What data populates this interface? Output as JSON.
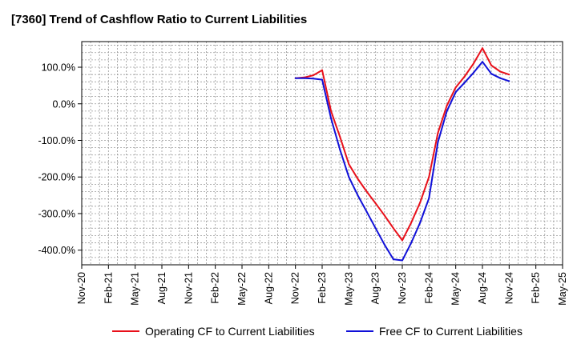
{
  "chart_data": {
    "type": "line",
    "title": "[7360]  Trend of Cashflow Ratio to Current Liabilities",
    "xlabel": "",
    "ylabel": "",
    "x_ticks": [
      "Nov-20",
      "Feb-21",
      "May-21",
      "Aug-21",
      "Nov-21",
      "Feb-22",
      "May-22",
      "Aug-22",
      "Nov-22",
      "Feb-23",
      "May-23",
      "Aug-23",
      "Nov-23",
      "Feb-24",
      "May-24",
      "Aug-24",
      "Nov-24",
      "Feb-25",
      "May-25"
    ],
    "y_ticks": [
      "100.0%",
      "0.0%",
      "-100.0%",
      "-200.0%",
      "-300.0%",
      "-400.0%"
    ],
    "y_tick_values": [
      100,
      0,
      -100,
      -200,
      -300,
      -400
    ],
    "ylim": [
      -440,
      170
    ],
    "grid": true,
    "legend_position": "bottom",
    "series": [
      {
        "name": "Operating CF to Current Liabilities",
        "color": "#e8101a",
        "x": [
          "Nov-22",
          "Dec-22",
          "Jan-23",
          "Feb-23",
          "Mar-23",
          "Apr-23",
          "May-23",
          "Jun-23",
          "Jul-23",
          "Aug-23",
          "Sep-23",
          "Oct-23",
          "Nov-23",
          "Dec-23",
          "Jan-24",
          "Feb-24",
          "Mar-24",
          "Apr-24",
          "May-24",
          "Jun-24",
          "Jul-24",
          "Aug-24",
          "Sep-24",
          "Oct-24",
          "Nov-24"
        ],
        "values": [
          70,
          72,
          78,
          92,
          -20,
          -90,
          -165,
          -205,
          -240,
          -272,
          -305,
          -340,
          -373,
          -325,
          -270,
          -200,
          -80,
          -5,
          45,
          75,
          110,
          152,
          105,
          88,
          80
        ]
      },
      {
        "name": "Free CF to Current Liabilities",
        "color": "#1010d8",
        "x": [
          "Nov-22",
          "Dec-22",
          "Jan-23",
          "Feb-23",
          "Mar-23",
          "Apr-23",
          "May-23",
          "Jun-23",
          "Jul-23",
          "Aug-23",
          "Sep-23",
          "Oct-23",
          "Nov-23",
          "Dec-23",
          "Jan-24",
          "Feb-24",
          "Mar-24",
          "Apr-24",
          "May-24",
          "Jun-24",
          "Jul-24",
          "Aug-24",
          "Sep-24",
          "Oct-24",
          "Nov-24"
        ],
        "values": [
          70,
          70,
          69,
          66,
          -40,
          -125,
          -200,
          -250,
          -295,
          -340,
          -385,
          -425,
          -428,
          -380,
          -325,
          -258,
          -105,
          -20,
          32,
          58,
          85,
          115,
          82,
          70,
          62
        ]
      }
    ]
  }
}
